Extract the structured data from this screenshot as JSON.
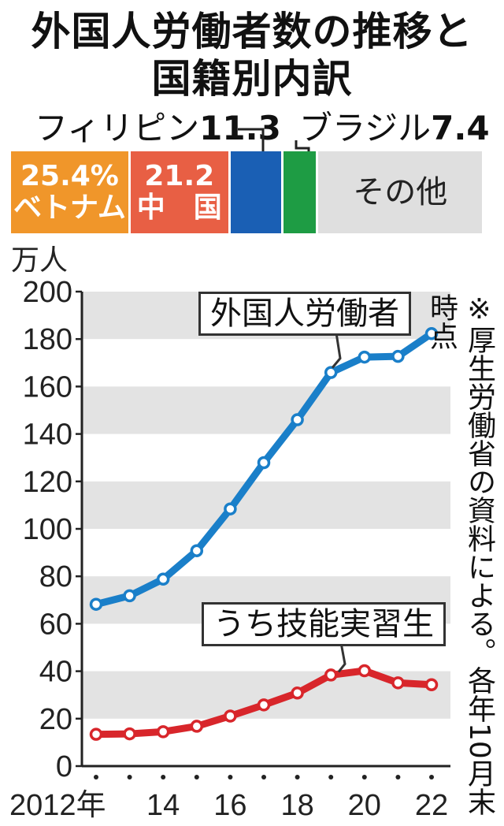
{
  "title_line1": "外国人労働者数の推移と",
  "title_line2": "国籍別内訳",
  "breakdown": {
    "segments": [
      {
        "name": "ベトナム",
        "value": "25.4%",
        "share": 25.4,
        "color": "#f0962a"
      },
      {
        "name": "中　国",
        "value": "21.2",
        "share": 21.2,
        "color": "#e85f44"
      },
      {
        "name": "フィリピン",
        "value": "11.3",
        "share": 11.3,
        "color": "#1a5fb4"
      },
      {
        "name": "ブラジル",
        "value": "7.4",
        "share": 7.4,
        "color": "#1e9c44"
      },
      {
        "name": "その他",
        "value": "",
        "share": 34.7,
        "color": "#dfdfdf"
      }
    ],
    "philippines_callout_name": "フィリピン",
    "philippines_callout_value": "11.3",
    "brazil_callout_name": "ブラジル",
    "brazil_callout_value": "7.4"
  },
  "source_note": "※厚生労働省の資料による。各年10月末時点",
  "chart_data": {
    "type": "line",
    "ylabel": "万人",
    "ylim": [
      0,
      200
    ],
    "yticks": [
      0,
      20,
      40,
      60,
      80,
      100,
      120,
      140,
      160,
      180,
      200
    ],
    "x": [
      2012,
      2013,
      2014,
      2015,
      2016,
      2017,
      2018,
      2019,
      2020,
      2021,
      2022
    ],
    "xtick_labels": [
      "2012年",
      "14",
      "16",
      "18",
      "20",
      "22"
    ],
    "xtick_values": [
      2012,
      2014,
      2016,
      2018,
      2020,
      2022
    ],
    "grid": "horizontal bands",
    "series": [
      {
        "name": "外国人労働者",
        "color": "#1a7fc9",
        "values": [
          68.2,
          71.8,
          78.8,
          90.8,
          108.4,
          127.9,
          146.0,
          165.9,
          172.4,
          172.7,
          182.3
        ]
      },
      {
        "name": "うち技能実習生",
        "color": "#d8262b",
        "values": [
          13.4,
          13.6,
          14.5,
          16.8,
          21.1,
          25.8,
          30.8,
          38.4,
          40.2,
          35.1,
          34.3
        ]
      }
    ]
  }
}
